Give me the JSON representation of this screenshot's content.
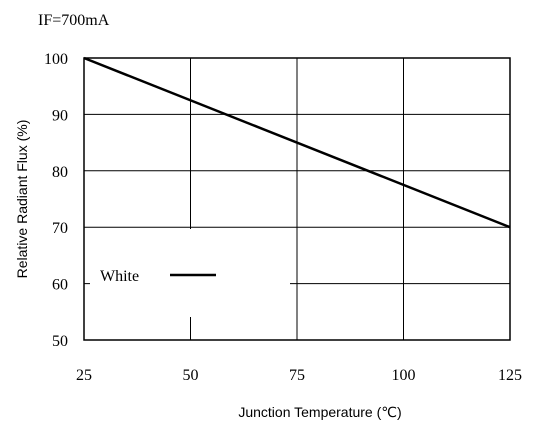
{
  "header_note": "IF=700mA",
  "chart_data": {
    "type": "line",
    "xlabel": "Junction Temperature (℃)",
    "ylabel": "Relative Radiant Flux (%)",
    "xlim": [
      25,
      125
    ],
    "ylim": [
      50,
      100
    ],
    "x_ticks": [
      25,
      50,
      75,
      100,
      125
    ],
    "y_ticks": [
      50,
      60,
      70,
      80,
      90,
      100
    ],
    "x_tick_labels": [
      "25",
      "50",
      "75",
      "100",
      "125"
    ],
    "y_tick_labels": [
      "50",
      "60",
      "70",
      "80",
      "90",
      "100"
    ],
    "grid": true,
    "legend_position": "bottom-left",
    "series": [
      {
        "name": "White",
        "x": [
          25,
          125
        ],
        "y": [
          100,
          70
        ],
        "color": "#000000"
      }
    ]
  }
}
